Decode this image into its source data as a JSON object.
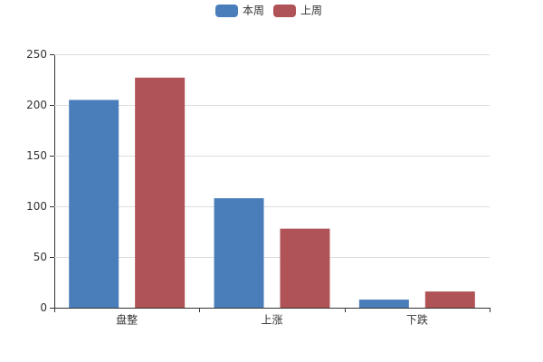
{
  "chart_data": {
    "type": "bar",
    "categories": [
      "盘整",
      "上涨",
      "下跌"
    ],
    "series": [
      {
        "name": "本周",
        "color": "#4a7ebb",
        "values": [
          205,
          108,
          8
        ]
      },
      {
        "name": "上周",
        "color": "#b05357",
        "values": [
          227,
          78,
          16
        ]
      }
    ],
    "ylim": [
      0,
      250
    ],
    "yticks": [
      0,
      50,
      100,
      150,
      200,
      250
    ],
    "grid": true,
    "legend": "top"
  }
}
